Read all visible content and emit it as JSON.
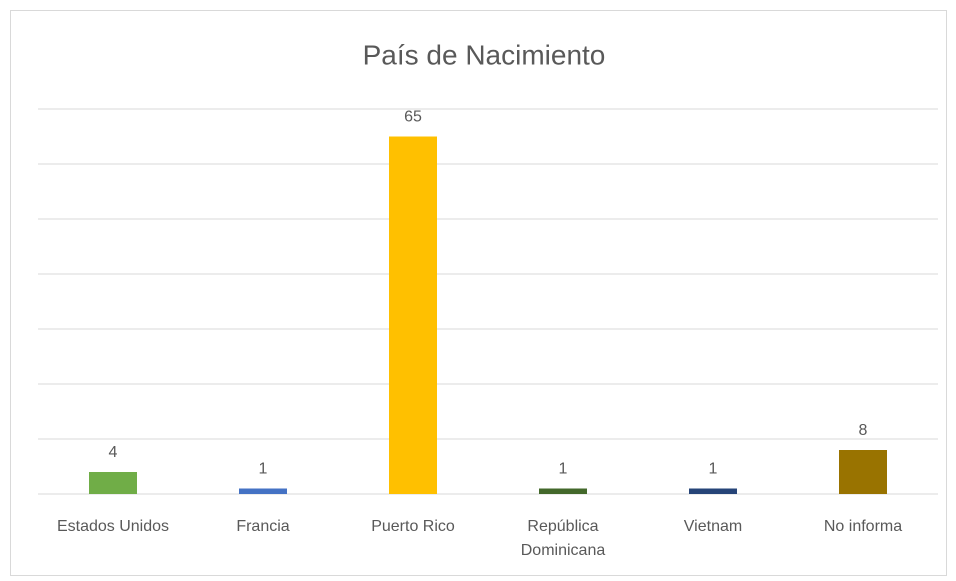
{
  "chart_data": {
    "type": "bar",
    "title": "País de Nacimiento",
    "categories": [
      "Estados Unidos",
      "Francia",
      "Puerto Rico",
      "República Dominicana",
      "Vietnam",
      "No informa"
    ],
    "values": [
      4,
      1,
      65,
      1,
      1,
      8
    ],
    "colors": [
      "#70ad47",
      "#4472c4",
      "#ffc000",
      "#43682b",
      "#264478",
      "#997300"
    ],
    "ylim": [
      0,
      70
    ],
    "yticks": [
      0,
      10,
      20,
      30,
      40,
      50,
      60,
      70
    ],
    "grid": true
  }
}
